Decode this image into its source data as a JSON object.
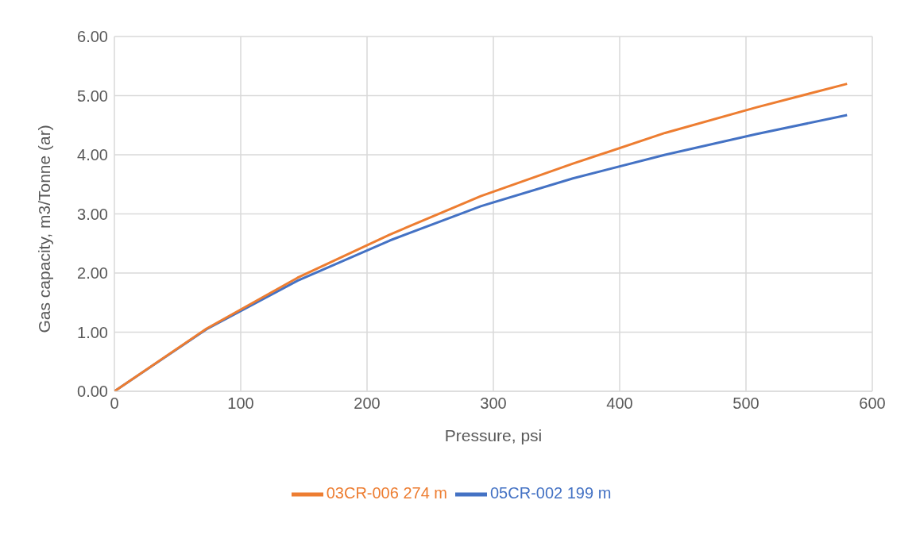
{
  "chart_data": {
    "type": "line",
    "xlabel": "Pressure, psi",
    "ylabel": "Gas capacity, m3/Tonne (ar)",
    "x": [
      0,
      73,
      145,
      218,
      290,
      363,
      436,
      508,
      580
    ],
    "series": [
      {
        "name": "05CR-002 199 m",
        "color": "#4472c4",
        "values": [
          0,
          1.05,
          1.87,
          2.55,
          3.13,
          3.6,
          4.0,
          4.35,
          4.67
        ]
      },
      {
        "name": "03CR-006 274 m",
        "color": "#ed7d31",
        "values": [
          0,
          1.06,
          1.92,
          2.65,
          3.3,
          3.85,
          4.37,
          4.8,
          5.2
        ]
      }
    ],
    "xlim": [
      0,
      600
    ],
    "xticks": [
      0,
      100,
      200,
      300,
      400,
      500,
      600
    ],
    "ylim": [
      0,
      6
    ],
    "yticks": [
      {
        "value": 0,
        "label": "0.00"
      },
      {
        "value": 1,
        "label": "1.00"
      },
      {
        "value": 2,
        "label": "2.00"
      },
      {
        "value": 3,
        "label": "3.00"
      },
      {
        "value": 4,
        "label": "4.00"
      },
      {
        "value": 5,
        "label": "5.00"
      },
      {
        "value": 6,
        "label": "6.00"
      }
    ],
    "grid": true,
    "legend": "bottom",
    "marker": "none",
    "line_style": "solid"
  }
}
